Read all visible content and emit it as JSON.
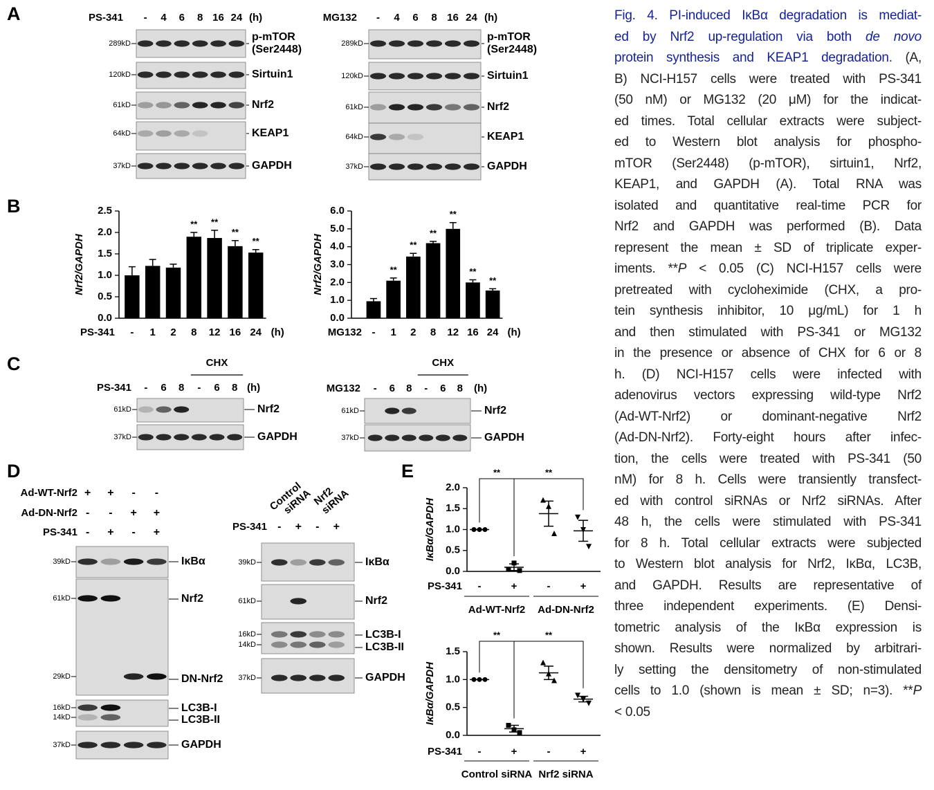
{
  "panel_labels": [
    "A",
    "B",
    "C",
    "D",
    "E"
  ],
  "blots": {
    "A": [
      {
        "treatment": "PS-341",
        "lanes": [
          "-",
          "4",
          "6",
          "8",
          "16",
          "24"
        ],
        "unit": "(h)",
        "rows": [
          {
            "markers": [
              "289kD"
            ],
            "labels": [
              "p-mTOR",
              "(Ser2448)"
            ]
          },
          {
            "markers": [
              "120kD"
            ],
            "labels": [
              "Sirtuin1"
            ]
          },
          {
            "markers": [
              "61kD"
            ],
            "labels": [
              "Nrf2"
            ]
          },
          {
            "markers": [
              "64kD"
            ],
            "labels": [
              "KEAP1"
            ]
          },
          {
            "markers": [
              "37kD"
            ],
            "labels": [
              "GAPDH"
            ]
          }
        ]
      },
      {
        "treatment": "MG132",
        "lanes": [
          "-",
          "4",
          "6",
          "8",
          "16",
          "24"
        ],
        "unit": "(h)",
        "rows": [
          {
            "markers": [
              "289kD"
            ],
            "labels": [
              "p-mTOR",
              "(Ser2448)"
            ]
          },
          {
            "markers": [
              "120kD"
            ],
            "labels": [
              "Sirtuin1"
            ]
          },
          {
            "markers": [
              "61kD"
            ],
            "labels": [
              "Nrf2"
            ]
          },
          {
            "markers": [
              "64kD"
            ],
            "labels": [
              "KEAP1"
            ]
          },
          {
            "markers": [
              "37kD"
            ],
            "labels": [
              "GAPDH"
            ]
          }
        ]
      }
    ],
    "C": [
      {
        "treatment": "PS-341",
        "group": "CHX",
        "lanes": [
          "-",
          "6",
          "8",
          "-",
          "6",
          "8"
        ],
        "unit": "(h)",
        "rows": [
          {
            "markers": [
              "61kD"
            ],
            "labels": [
              "Nrf2"
            ]
          },
          {
            "markers": [
              "37kD"
            ],
            "labels": [
              "GAPDH"
            ]
          }
        ]
      },
      {
        "treatment": "MG132",
        "group": "CHX",
        "lanes": [
          "-",
          "6",
          "8",
          "-",
          "6",
          "8"
        ],
        "unit": "(h)",
        "rows": [
          {
            "markers": [
              "61kD"
            ],
            "labels": [
              "Nrf2"
            ]
          },
          {
            "markers": [
              "37kD"
            ],
            "labels": [
              "GAPDH"
            ]
          }
        ]
      }
    ],
    "D": [
      {
        "conditions": [
          {
            "name": "Ad-WT-Nrf2",
            "signs": [
              "+",
              "+",
              "-",
              "-"
            ]
          },
          {
            "name": "Ad-DN-Nrf2",
            "signs": [
              "-",
              "-",
              "+",
              "+"
            ]
          },
          {
            "name": "PS-341",
            "signs": [
              "-",
              "+",
              "-",
              "+"
            ]
          }
        ],
        "rows": [
          {
            "markers": [
              "39kD"
            ],
            "labels": [
              "IκBα"
            ]
          },
          {
            "markers": [
              "61kD",
              "29kD"
            ],
            "labels": [
              "Nrf2",
              "DN-Nrf2"
            ]
          },
          {
            "markers": [
              "16kD",
              "14kD"
            ],
            "labels": [
              "LC3B-I",
              "LC3B-II"
            ]
          },
          {
            "markers": [
              "37kD"
            ],
            "labels": [
              "GAPDH"
            ]
          }
        ]
      },
      {
        "groups": [
          [
            "Control",
            "siRNA"
          ],
          [
            "Nrf2",
            "siRNA"
          ]
        ],
        "conditions": [
          {
            "name": "PS-341",
            "signs": [
              "-",
              "+",
              "-",
              "+"
            ]
          }
        ],
        "rows": [
          {
            "markers": [
              "39kD"
            ],
            "labels": [
              "IκBα"
            ]
          },
          {
            "markers": [
              "61kD"
            ],
            "labels": [
              "Nrf2"
            ]
          },
          {
            "markers": [
              "16kD",
              "14kD"
            ],
            "labels": [
              "LC3B-I",
              "LC3B-II"
            ]
          },
          {
            "markers": [
              "37kD"
            ],
            "labels": [
              "GAPDH"
            ]
          }
        ]
      }
    ]
  },
  "chart_data": [
    {
      "type": "bar",
      "y_label": "Nrf2/GAPDH",
      "x_label": "PS-341",
      "x_unit": "(h)",
      "categories": [
        "-",
        "1",
        "2",
        "8",
        "12",
        "16",
        "24"
      ],
      "values": [
        1.0,
        1.22,
        1.18,
        1.9,
        1.87,
        1.68,
        1.53
      ],
      "errors": [
        0.2,
        0.15,
        0.08,
        0.1,
        0.18,
        0.13,
        0.07
      ],
      "annotations": [
        null,
        null,
        null,
        "**",
        "**",
        "**",
        "**"
      ],
      "color": "#000000",
      "ylim": [
        0,
        2.5
      ],
      "yticks": [
        {
          "value": 0,
          "label": "0.0"
        },
        0.5,
        {
          "value": 1,
          "label": "1.0"
        },
        1.5,
        {
          "value": 2,
          "label": "2.0"
        },
        2.5
      ]
    },
    {
      "type": "bar",
      "y_label": "Nrf2/GAPDH",
      "x_label": "MG132",
      "x_unit": "(h)",
      "categories": [
        "-",
        "1",
        "2",
        "8",
        "12",
        "16",
        "24"
      ],
      "values": [
        0.95,
        2.1,
        3.45,
        4.2,
        5.0,
        2.0,
        1.55
      ],
      "errors": [
        0.15,
        0.15,
        0.18,
        0.1,
        0.35,
        0.15,
        0.1
      ],
      "annotations": [
        null,
        "**",
        "**",
        "**",
        "**",
        "**",
        "**"
      ],
      "color": "#000000",
      "ylim": [
        0,
        6
      ],
      "yticks": [
        {
          "value": 0,
          "label": "0.0"
        },
        {
          "value": 1,
          "label": "1.0"
        },
        {
          "value": 2,
          "label": "2.0"
        },
        {
          "value": 3,
          "label": "3.0"
        },
        {
          "value": 4,
          "label": "4.0"
        },
        {
          "value": 5,
          "label": "5.0"
        },
        {
          "value": 6,
          "label": "6.0"
        }
      ]
    },
    {
      "type": "dot",
      "y_label": "IκBα/GAPDH",
      "x_label": "PS-341",
      "categories": [
        "-",
        "+",
        "-",
        "+"
      ],
      "groups": [
        "Ad-WT-Nrf2",
        "Ad-DN-Nrf2"
      ],
      "points": [
        [
          1,
          1,
          1
        ],
        [
          0.05,
          0.2,
          0.02
        ],
        [
          1.7,
          1.55,
          0.9
        ],
        [
          1.3,
          1.0,
          0.6
        ]
      ],
      "means": [
        1,
        0.1,
        1.38,
        0.97
      ],
      "errors": [
        0,
        0.08,
        0.3,
        0.25
      ],
      "markers": [
        "circle",
        "square",
        "triangle-up",
        "triangle-down"
      ],
      "annotations": [
        "**",
        "**"
      ],
      "color": "#000000",
      "ylim": [
        0,
        2
      ],
      "yticks": [
        {
          "value": 0,
          "label": "0.0"
        },
        0.5,
        {
          "value": 1,
          "label": "1.0"
        },
        1.5,
        {
          "value": 2,
          "label": "2.0"
        }
      ]
    },
    {
      "type": "dot",
      "y_label": "IκBα/GAPDH",
      "x_label": "PS-341",
      "categories": [
        "-",
        "+",
        "-",
        "+"
      ],
      "groups": [
        "Control siRNA",
        "Nrf2 siRNA"
      ],
      "points": [
        [
          1,
          1,
          1
        ],
        [
          0.18,
          0.1,
          0.05
        ],
        [
          1.3,
          1.1,
          0.98
        ],
        [
          0.72,
          0.65,
          0.58
        ]
      ],
      "means": [
        1,
        0.12,
        1.12,
        0.65
      ],
      "errors": [
        0,
        0.06,
        0.12,
        0.05
      ],
      "markers": [
        "circle",
        "square",
        "triangle-up",
        "triangle-down"
      ],
      "annotations": [
        "**",
        "**"
      ],
      "color": "#000000",
      "ylim": [
        0,
        1.5
      ],
      "yticks": [
        {
          "value": 0,
          "label": "0.0"
        },
        0.5,
        {
          "value": 1,
          "label": "1.0"
        },
        1.5
      ]
    }
  ],
  "caption": {
    "lines": [
      [
        {
          "text": "Fig. 4. PI-induced IκBα degradation is mediat-",
          "style": "title"
        }
      ],
      [
        {
          "text": "ed by Nrf2 up-regulation via both ",
          "style": "title"
        },
        {
          "text": "de novo",
          "style": "title-italic"
        }
      ],
      [
        {
          "text": "protein synthesis and KEAP1 degradation.",
          "style": "title"
        },
        {
          "text": " (A,",
          "style": "plain"
        }
      ],
      "B) NCI-H157 cells were treated with PS-341",
      "(50 nM) or MG132 (20 μM) for the indicat-",
      "ed times. Total cellular extracts were subject-",
      "ed to Western blot analysis for phospho-",
      "mTOR (Ser2448) (p-mTOR), sirtuin1, Nrf2,",
      "KEAP1, and GAPDH (A). Total RNA was",
      "isolated and quantitative real-time PCR for",
      "Nrf2 and GAPDH was performed (B). Data",
      "represent the mean ± SD of triplicate exper-",
      [
        {
          "text": "iments. **",
          "style": "plain"
        },
        {
          "text": "P",
          "style": "italic"
        },
        {
          "text": " < 0.05 (C) NCI-H157 cells were",
          "style": "plain"
        }
      ],
      "pretreated with cycloheximide (CHX, a pro-",
      "tein synthesis inhibitor, 10 μg/mL) for 1 h",
      "and then stimulated with PS-341 or MG132",
      "in the presence or absence of CHX for 6 or 8",
      "h. (D) NCI-H157 cells were infected with",
      "adenovirus vectors expressing wild-type Nrf2",
      "(Ad-WT-Nrf2) or dominant-negative Nrf2",
      "(Ad-DN-Nrf2). Forty-eight hours after infec-",
      "tion, the cells were treated with PS-341 (50",
      "nM) for 8 h. Cells were transiently transfect-",
      "ed with control siRNAs or Nrf2 siRNAs. After",
      "48 h, the cells were stimulated with PS-341",
      "for 8 h. Total cellular extracts were subjected",
      "to Western blot analysis for Nrf2, IκBα, LC3B,",
      "and GAPDH. Results are representative of",
      "three independent experiments. (E) Densi-",
      "tometric analysis of the IκBα expression is",
      "shown. Results were normalized by arbitrari-",
      "ly setting the densitometry of non-stimulated",
      [
        {
          "text": "cells to 1.0 (shown is mean ± SD; n=3). **",
          "style": "plain"
        },
        {
          "text": "P",
          "style": "italic"
        }
      ],
      "< 0.05"
    ]
  }
}
